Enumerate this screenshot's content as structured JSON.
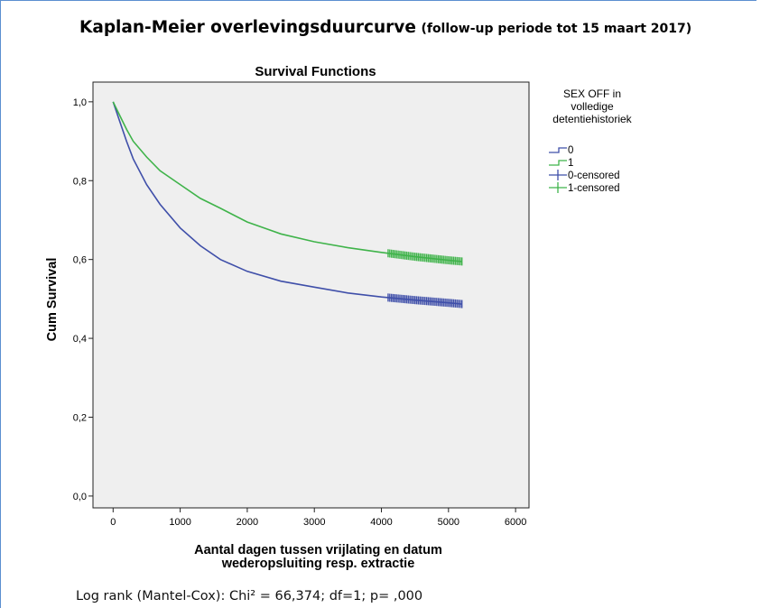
{
  "heading": {
    "main": "Kaplan-Meier overlevingsduurcurve",
    "sub": "(follow-up periode tot 15 maart 2017)"
  },
  "footer": "Log rank (Mantel-Cox): Chi² = 66,374; df=1; p= ,000",
  "colors": {
    "series_0": "#3f4fa9",
    "series_1": "#3fb34a",
    "plot_bg": "#efefef"
  },
  "chart_data": {
    "type": "line",
    "title": "Survival Functions",
    "xlabel": "Aantal dagen tussen vrijlating en datum wederopsluiting resp. extractie",
    "xlabel_lines": [
      "Aantal dagen tussen vrijlating en datum",
      "wederopsluiting resp. extractie"
    ],
    "ylabel": "Cum Survival",
    "xlim": [
      -300,
      6200
    ],
    "ylim": [
      -0.03,
      1.05
    ],
    "xticks": [
      0,
      1000,
      2000,
      3000,
      4000,
      5000,
      6000
    ],
    "xtick_labels": [
      "0",
      "1000",
      "2000",
      "3000",
      "4000",
      "5000",
      "6000"
    ],
    "yticks": [
      0.0,
      0.2,
      0.4,
      0.6,
      0.8,
      1.0
    ],
    "ytick_labels": [
      "0,0",
      "0,2",
      "0,4",
      "0,6",
      "0,8",
      "1,0"
    ],
    "grid": false,
    "legend": {
      "title": "SEX OFF in volledige detentiehistoriek",
      "title_lines": [
        "SEX OFF in",
        "volledige",
        "detentiehistoriek"
      ],
      "placement": "right",
      "entries": [
        "0",
        "1",
        "0-censored",
        "1-censored"
      ]
    },
    "series": [
      {
        "name": "0",
        "x": [
          0,
          100,
          200,
          300,
          500,
          700,
          1000,
          1300,
          1600,
          2000,
          2500,
          3000,
          3500,
          4000,
          4500,
          5000,
          5200
        ],
        "values": [
          1.0,
          0.95,
          0.9,
          0.855,
          0.79,
          0.74,
          0.68,
          0.635,
          0.6,
          0.57,
          0.545,
          0.53,
          0.515,
          0.505,
          0.497,
          0.49,
          0.487
        ]
      },
      {
        "name": "1",
        "x": [
          0,
          100,
          200,
          300,
          500,
          700,
          1000,
          1300,
          1600,
          2000,
          2500,
          3000,
          3500,
          4000,
          4500,
          5000,
          5200
        ],
        "values": [
          1.0,
          0.965,
          0.93,
          0.9,
          0.86,
          0.825,
          0.79,
          0.755,
          0.73,
          0.695,
          0.665,
          0.645,
          0.63,
          0.618,
          0.607,
          0.598,
          0.595
        ]
      }
    ],
    "censored": [
      {
        "name": "0-censored",
        "x_range": [
          4100,
          5200
        ]
      },
      {
        "name": "1-censored",
        "x_range": [
          4100,
          5200
        ]
      }
    ]
  }
}
